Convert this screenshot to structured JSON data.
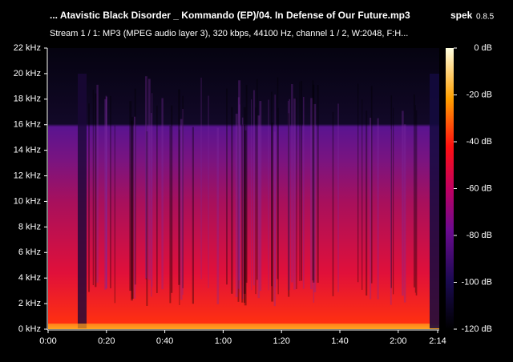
{
  "header": {
    "file_title": "... Atavistic Black Disorder _ Kommando (EP)/04. In Defense of Our Future.mp3",
    "app_name": "spek",
    "app_version": "0.8.5",
    "stream_info": "Stream 1 / 1: MP3 (MPEG audio layer 3), 320 kbps, 44100 Hz, channel 1 / 2, W:2048, F:H..."
  },
  "frequency_axis": {
    "labels": [
      "22 kHz",
      "20 kHz",
      "18 kHz",
      "16 kHz",
      "14 kHz",
      "12 kHz",
      "10 kHz",
      "8 kHz",
      "6 kHz",
      "4 kHz",
      "2 kHz",
      "0 kHz"
    ]
  },
  "time_axis": {
    "labels": [
      "0:00",
      "0:20",
      "0:40",
      "1:00",
      "1:20",
      "1:40",
      "2:00",
      "2:14"
    ]
  },
  "level_scale": {
    "labels": [
      "0 dB",
      "-20 dB",
      "-40 dB",
      "-60 dB",
      "-80 dB",
      "-100 dB",
      "-120 dB"
    ]
  }
}
